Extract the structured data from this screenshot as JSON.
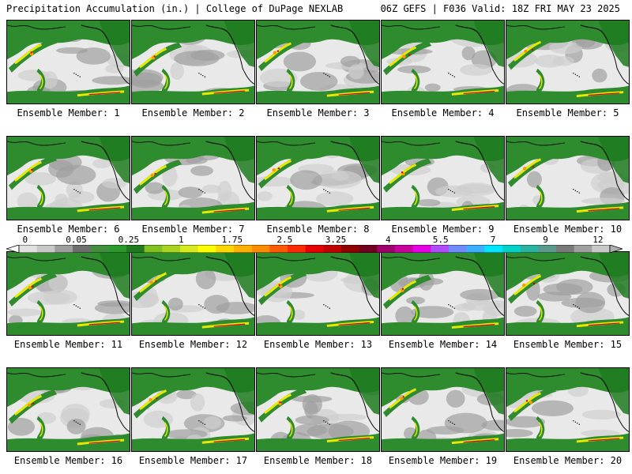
{
  "header": {
    "left": "Precipitation Accumulation (in.) | College of DuPage NEXLAB",
    "right": "06Z GEFS | F036 Valid: 18Z FRI MAY 23 2025"
  },
  "colorbar": {
    "labels": [
      "0",
      "0.05",
      "0.25",
      "1",
      "1.75",
      "2.5",
      "3.25",
      "4",
      "5.5",
      "7",
      "9",
      "12"
    ],
    "colors": [
      "#e0e0e0",
      "#c8c8c8",
      "#9e9e9e",
      "#6e6e6e",
      "#3f8f3f",
      "#2a9a2a",
      "#1f7a1f",
      "#7fc21f",
      "#a8d41f",
      "#d6ea1f",
      "#ffff00",
      "#ffd700",
      "#ffb000",
      "#ff8c00",
      "#ff5a00",
      "#ff2a00",
      "#e60000",
      "#c00000",
      "#900000",
      "#700020",
      "#a0006e",
      "#c8009c",
      "#e600e6",
      "#b04cff",
      "#6f8cff",
      "#3cb0ff",
      "#00e6ff",
      "#00d2c8",
      "#2ab4a0",
      "#5a9a8c",
      "#7a7a7a",
      "#a0a0a0",
      "#c8c8c8"
    ]
  },
  "palette": {
    "ocean_gray": "#e9e9e9",
    "light_gray": "#cfcfcf",
    "mid_gray": "#9f9f9f",
    "green": "#2e8b2e",
    "dark_green": "#1f7a1f",
    "yellow": "#e8e800",
    "orange": "#ff9900",
    "red": "#d40000",
    "coast": "#000000"
  },
  "members": [
    {
      "label": "Ensemble Member: 1"
    },
    {
      "label": "Ensemble Member: 2"
    },
    {
      "label": "Ensemble Member: 3"
    },
    {
      "label": "Ensemble Member: 4"
    },
    {
      "label": "Ensemble Member: 5"
    },
    {
      "label": "Ensemble Member: 6"
    },
    {
      "label": "Ensemble Member: 7"
    },
    {
      "label": "Ensemble Member: 8"
    },
    {
      "label": "Ensemble Member: 9"
    },
    {
      "label": "Ensemble Member: 10"
    },
    {
      "label": "Ensemble Member: 11"
    },
    {
      "label": "Ensemble Member: 12"
    },
    {
      "label": "Ensemble Member: 13"
    },
    {
      "label": "Ensemble Member: 14"
    },
    {
      "label": "Ensemble Member: 15"
    },
    {
      "label": "Ensemble Member: 16"
    },
    {
      "label": "Ensemble Member: 17"
    },
    {
      "label": "Ensemble Member: 18"
    },
    {
      "label": "Ensemble Member: 19"
    },
    {
      "label": "Ensemble Member: 20"
    }
  ]
}
